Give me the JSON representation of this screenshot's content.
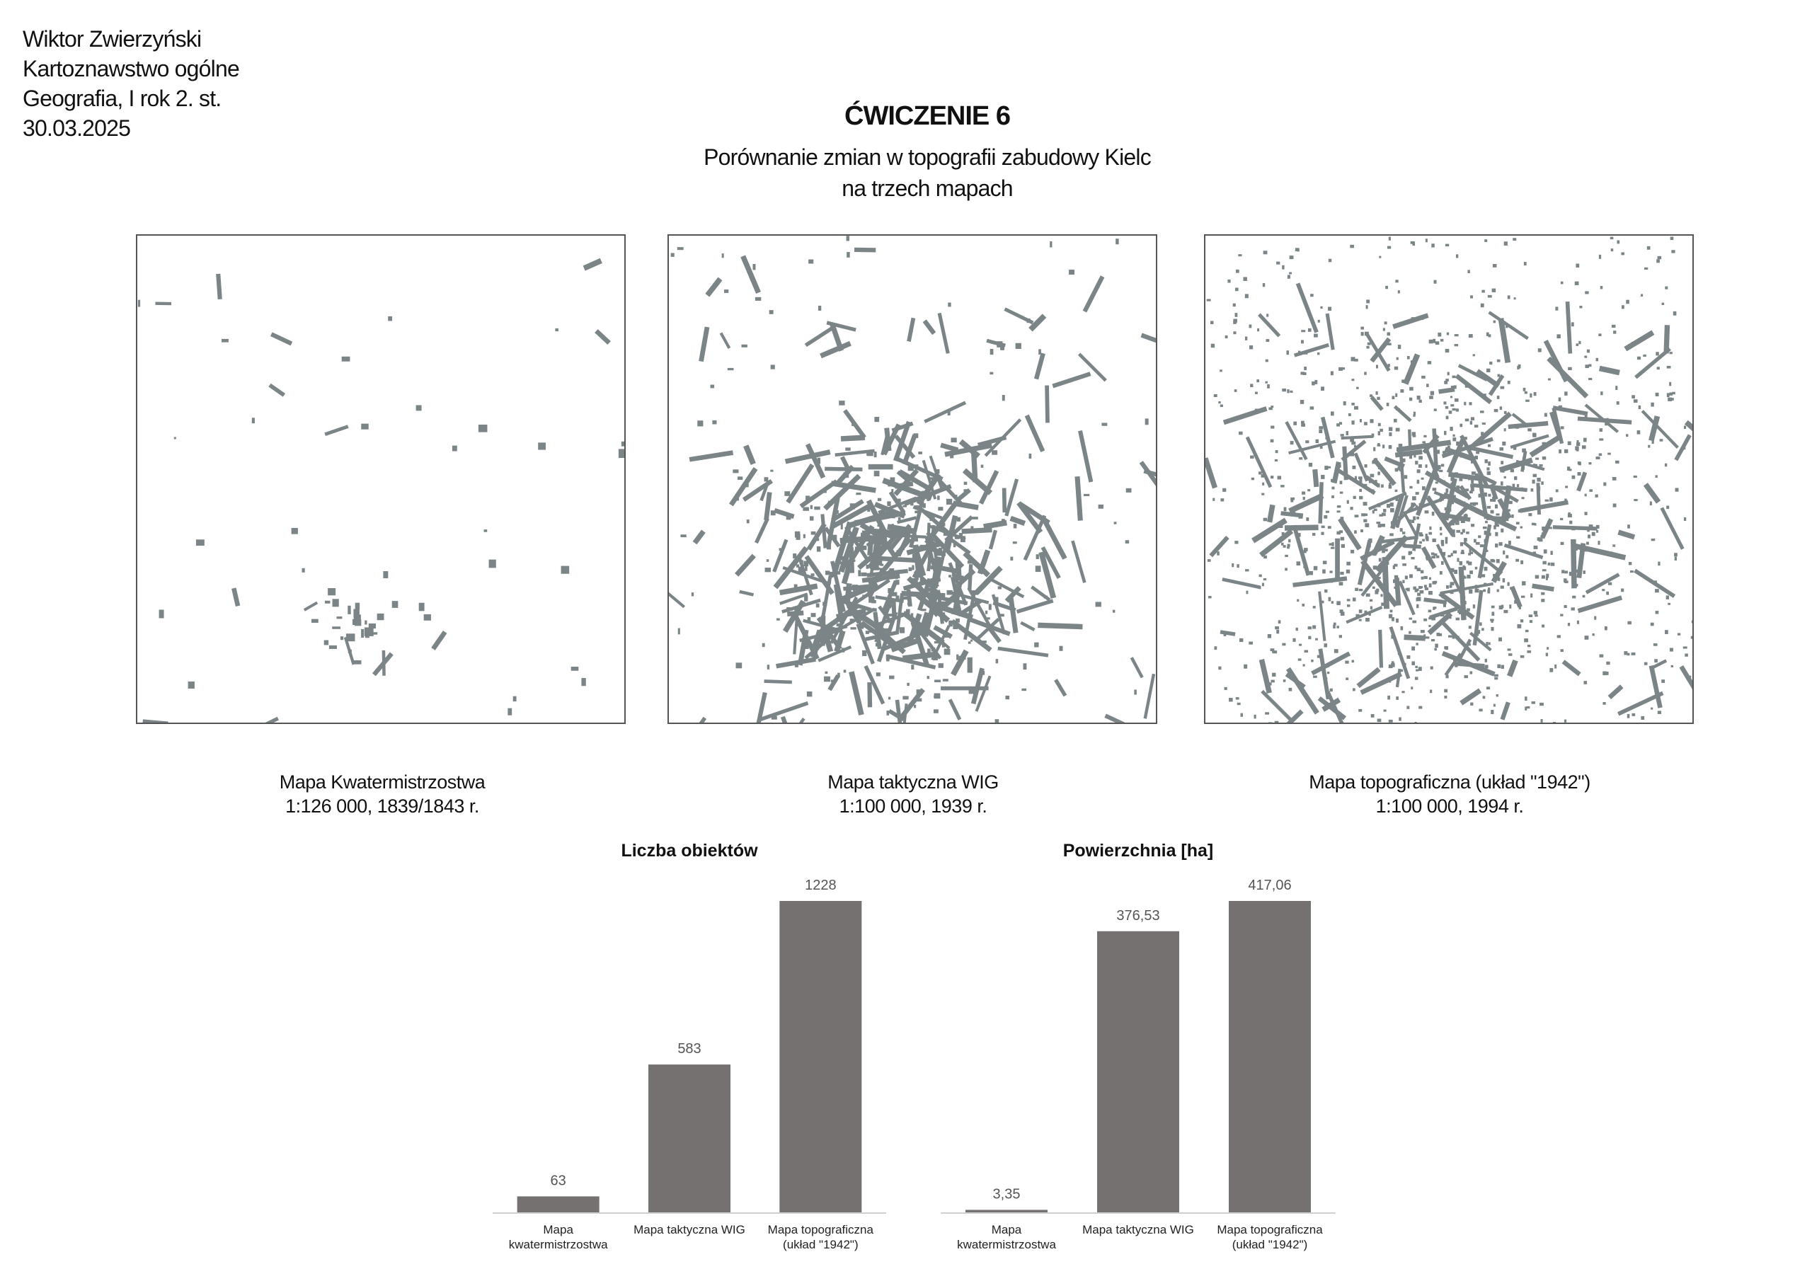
{
  "header": {
    "author": "Wiktor Zwierzyński",
    "course": "Kartoznawstwo ogólne",
    "program": "Geografia, I rok 2. st.",
    "date": "30.03.2025"
  },
  "title": "ĆWICZENIE 6",
  "subtitle_line1": "Porównanie zmian w topografii zabudowy Kielc",
  "subtitle_line2": "na trzech mapach",
  "colors": {
    "buildings": "#7b8587",
    "bars": "#757170",
    "map_border": "#555555"
  },
  "maps": [
    {
      "name": "Mapa Kwatermistrzostwa",
      "scale_year": "1:126 000, 1839/1843 r."
    },
    {
      "name": "Mapa taktyczna WIG",
      "scale_year": "1:100 000, 1939 r."
    },
    {
      "name": "Mapa topograficzna (układ \"1942\")",
      "scale_year": "1:100 000, 1994 r."
    }
  ],
  "chart_data": [
    {
      "type": "bar",
      "title": "Liczba obiektów",
      "categories": [
        [
          "Mapa",
          "kwatermistrzostwa"
        ],
        [
          "Mapa taktyczna WIG"
        ],
        [
          "Mapa topograficzna",
          "(układ \"1942\")"
        ]
      ],
      "values": [
        63,
        583,
        1228
      ],
      "value_labels": [
        "63",
        "583",
        "1228"
      ],
      "ylim": [
        0,
        1228
      ],
      "grid": false,
      "legend": "none"
    },
    {
      "type": "bar",
      "title": "Powierzchnia [ha]",
      "categories": [
        [
          "Mapa",
          "kwatermistrzostwa"
        ],
        [
          "Mapa taktyczna WIG"
        ],
        [
          "Mapa topograficzna",
          "(układ \"1942\")"
        ]
      ],
      "values": [
        3.35,
        376.53,
        417.06
      ],
      "value_labels": [
        "3,35",
        "376,53",
        "417,06"
      ],
      "ylim": [
        0,
        417.06
      ],
      "grid": false,
      "legend": "none"
    }
  ]
}
